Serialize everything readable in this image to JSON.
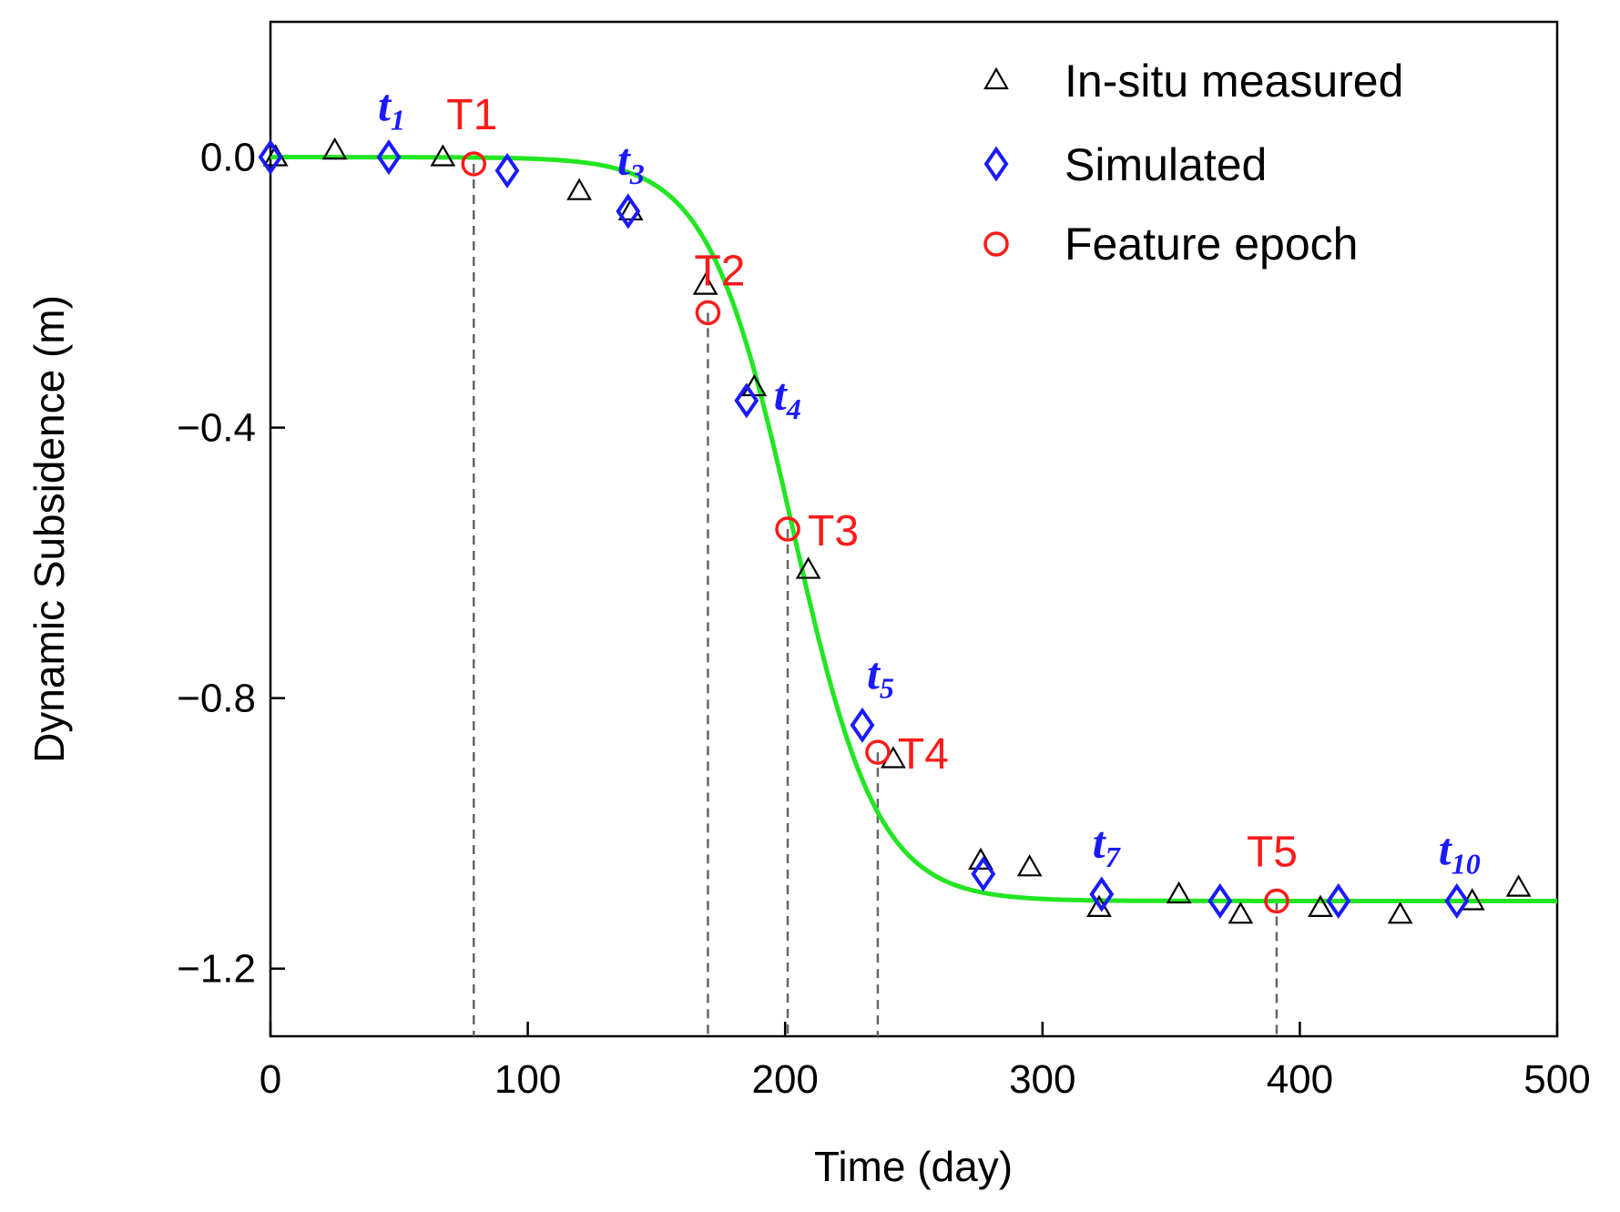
{
  "chart_data": {
    "type": "scatter",
    "title": "",
    "xlabel": "Time (day)",
    "ylabel": "Dynamic Subsidence (m)",
    "xlim": [
      0,
      500
    ],
    "ylim": [
      -1.3,
      0.2
    ],
    "xticks": [
      0,
      100,
      200,
      300,
      400,
      500
    ],
    "xtick_labels": [
      "0",
      "100",
      "200",
      "300",
      "400",
      "500"
    ],
    "yticks": [
      0.0,
      -0.4,
      -0.8,
      -1.2
    ],
    "ytick_labels": [
      "0.0",
      "−0.4",
      "−0.8",
      "−1.2"
    ],
    "grid": false,
    "legend_position": "top-right",
    "colors": {
      "measured": "#000000",
      "simulated": "#1a1aff",
      "feature": "#ff1a1a",
      "curve": "#22e622",
      "dropline": "#666666"
    },
    "curve": {
      "name": "Fitted curve",
      "model": "logistic",
      "amplitude": -1.1,
      "midpoint": 203,
      "scale": 16.5,
      "x_range": [
        0,
        500
      ]
    },
    "series": [
      {
        "name": "In-situ measured",
        "marker": "triangle",
        "x": [
          2,
          25,
          67,
          120,
          140,
          169,
          188,
          209,
          242,
          276,
          295,
          322,
          353,
          377,
          408,
          439,
          467,
          485
        ],
        "y": [
          0.0,
          0.01,
          0.0,
          -0.05,
          -0.08,
          -0.19,
          -0.34,
          -0.61,
          -0.89,
          -1.04,
          -1.05,
          -1.11,
          -1.09,
          -1.12,
          -1.11,
          -1.12,
          -1.1,
          -1.08
        ]
      },
      {
        "name": "Simulated",
        "marker": "diamond",
        "x": [
          0,
          46,
          92,
          139,
          185,
          230,
          277,
          323,
          369,
          415,
          461
        ],
        "y": [
          0.0,
          0.0,
          -0.02,
          -0.08,
          -0.36,
          -0.84,
          -1.06,
          -1.09,
          -1.1,
          -1.1,
          -1.1
        ]
      },
      {
        "name": "Feature epoch",
        "marker": "circle",
        "x": [
          79,
          170,
          201,
          236,
          391
        ],
        "y": [
          -0.01,
          -0.23,
          -0.55,
          -0.88,
          -1.1
        ]
      }
    ],
    "feature_labels": [
      {
        "text": "T1",
        "x": 79,
        "y": -0.01
      },
      {
        "text": "T2",
        "x": 170,
        "y": -0.23
      },
      {
        "text": "T3",
        "x": 201,
        "y": -0.55
      },
      {
        "text": "T4",
        "x": 236,
        "y": -0.88
      },
      {
        "text": "T5",
        "x": 391,
        "y": -1.1
      }
    ],
    "t_labels": [
      {
        "base": "t",
        "sub": "1",
        "x": 46,
        "y": 0.0
      },
      {
        "base": "t",
        "sub": "3",
        "x": 139,
        "y": -0.08
      },
      {
        "base": "t",
        "sub": "4",
        "x": 185,
        "y": -0.36
      },
      {
        "base": "t",
        "sub": "5",
        "x": 230,
        "y": -0.84
      },
      {
        "base": "t",
        "sub": "7",
        "x": 323,
        "y": -1.09
      },
      {
        "base": "t",
        "sub": "10",
        "x": 461,
        "y": -1.1
      }
    ]
  }
}
